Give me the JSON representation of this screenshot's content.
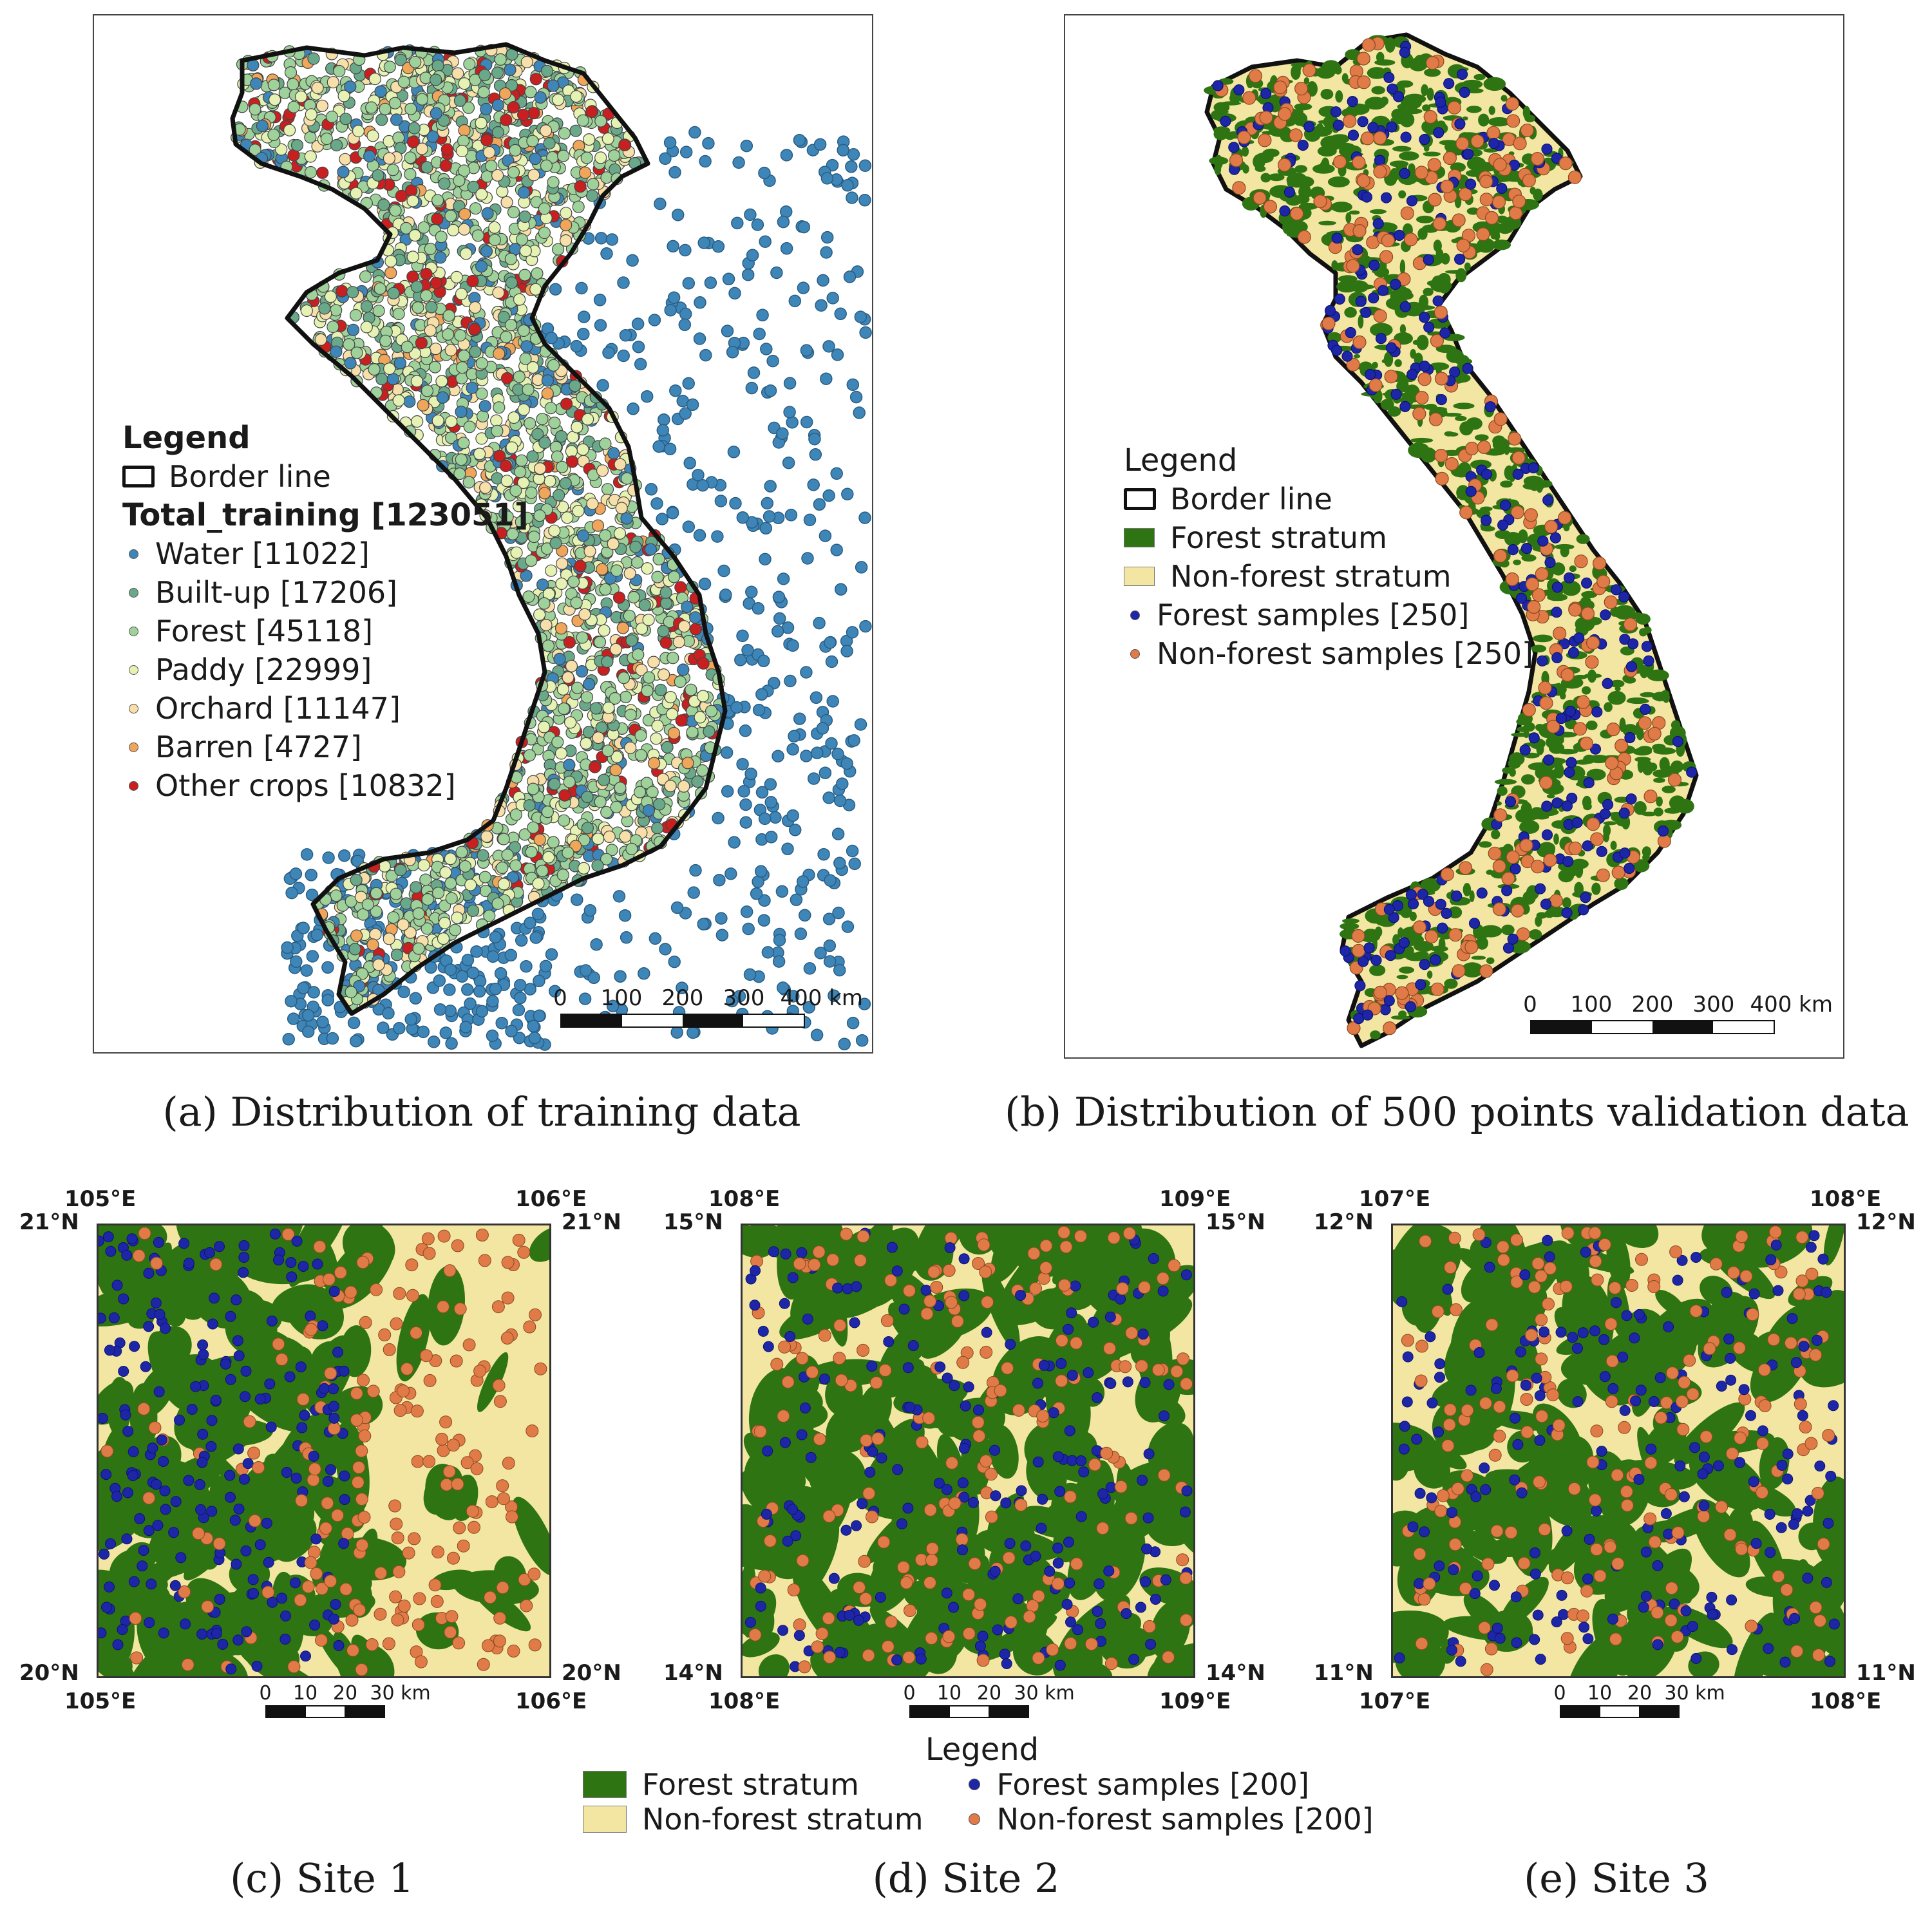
{
  "panel_a": {
    "legend_title": "Legend",
    "border_label": "Border line",
    "total_label": "Total_training [123051]",
    "classes": [
      {
        "label": "Water [11022]",
        "color": "#3f86b8"
      },
      {
        "label": "Built-up [17206]",
        "color": "#6aa88a"
      },
      {
        "label": "Forest [45118]",
        "color": "#9fd19a"
      },
      {
        "label": "Paddy [22999]",
        "color": "#e6f2b4"
      },
      {
        "label": "Orchard [11147]",
        "color": "#f7dfaa"
      },
      {
        "label": "Barren [4727]",
        "color": "#f0a65a"
      },
      {
        "label": "Other crops [10832]",
        "color": "#c82020"
      }
    ],
    "scale_labels": [
      "0",
      "100",
      "200",
      "300",
      "400 km"
    ],
    "caption": "(a) Distribution of training data"
  },
  "panel_b": {
    "legend_title": "Legend",
    "border_label": "Border line",
    "forest_stratum": "Forest stratum",
    "nonforest_stratum": "Non-forest stratum",
    "forest_samples": "Forest samples [250]",
    "nonforest_samples": "Non-forest samples [250]",
    "scale_labels": [
      "0",
      "100",
      "200",
      "300",
      "400 km"
    ],
    "caption": "(b) Distribution of 500 points validation data"
  },
  "sites": [
    {
      "caption": "(c) Site 1",
      "lon_left": "105°E",
      "lon_right": "106°E",
      "lat_top": "21°N",
      "lat_bottom": "20°N"
    },
    {
      "caption": "(d) Site 2",
      "lon_left": "108°E",
      "lon_right": "109°E",
      "lat_top": "15°N",
      "lat_bottom": "14°N"
    },
    {
      "caption": "(e) Site 3",
      "lon_left": "107°E",
      "lon_right": "108°E",
      "lat_top": "12°N",
      "lat_bottom": "11°N"
    }
  ],
  "site_scale_labels": [
    "0",
    "10",
    "20",
    "30 km"
  ],
  "bottom_legend": {
    "title": "Legend",
    "forest_stratum": "Forest stratum",
    "nonforest_stratum": "Non-forest stratum",
    "forest_samples": "Forest samples [200]",
    "nonforest_samples": "Non-forest samples [200]"
  },
  "colors": {
    "forest": "#2e7412",
    "nonforest": "#f3e6a3",
    "forest_sample": "#1e26a8",
    "nonforest_sample": "#e07a46",
    "border": "#111111"
  }
}
